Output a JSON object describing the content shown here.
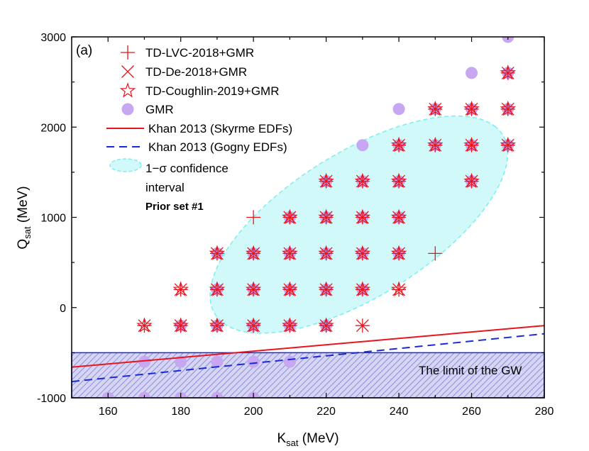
{
  "chart_data": {
    "type": "scatter",
    "panel_label": "(a)",
    "xlabel": {
      "main": "K",
      "sub": "sat",
      "unit": " (MeV)"
    },
    "ylabel": {
      "main": "Q",
      "sub": "sat",
      "unit": " (MeV)"
    },
    "xlim": [
      150,
      280
    ],
    "ylim": [
      -1000,
      3000
    ],
    "xticks": [
      160,
      180,
      200,
      220,
      240,
      260,
      280
    ],
    "yticks": [
      -1000,
      0,
      1000,
      2000,
      3000
    ],
    "ytick_labels": [
      "-1000",
      "0",
      "1000",
      "2000",
      "3000"
    ],
    "colors": {
      "red": "#e8141e",
      "violet": "#c7a6f2",
      "blue": "#1a2ad6",
      "cyan": "#7feff0",
      "band": "#8f8fe0"
    },
    "legend": {
      "series": [
        "TD-LVC-2018+GMR",
        "TD-De-2018+GMR",
        "TD-Coughlin-2019+GMR",
        "GMR"
      ],
      "lines": [
        "Khan 2013 (Skyrme EDFs)",
        "Khan 2013 (Gogny EDFs)"
      ],
      "ellipse_line1": "1−σ confidence",
      "ellipse_line2": "interval",
      "prior": "Prior set #1"
    },
    "band_label": "The limit of the GW",
    "band_range": [
      -1000,
      -500
    ],
    "series": [
      {
        "name": "TD-LVC-2018+GMR",
        "marker": "plus",
        "points": [
          [
            170,
            -200
          ],
          [
            180,
            -200
          ],
          [
            190,
            -200
          ],
          [
            200,
            -200
          ],
          [
            210,
            -200
          ],
          [
            220,
            -200
          ],
          [
            230,
            -200
          ],
          [
            180,
            200
          ],
          [
            190,
            200
          ],
          [
            200,
            200
          ],
          [
            210,
            200
          ],
          [
            220,
            200
          ],
          [
            230,
            200
          ],
          [
            240,
            200
          ],
          [
            190,
            600
          ],
          [
            200,
            600
          ],
          [
            210,
            600
          ],
          [
            220,
            600
          ],
          [
            230,
            600
          ],
          [
            240,
            600
          ],
          [
            250,
            600
          ],
          [
            200,
            1000
          ],
          [
            210,
            1000
          ],
          [
            220,
            1000
          ],
          [
            230,
            1000
          ],
          [
            240,
            1000
          ],
          [
            220,
            1400
          ],
          [
            230,
            1400
          ],
          [
            240,
            1400
          ],
          [
            260,
            1400
          ],
          [
            240,
            1800
          ],
          [
            250,
            1800
          ],
          [
            260,
            1800
          ],
          [
            270,
            1800
          ],
          [
            250,
            2200
          ],
          [
            260,
            2200
          ],
          [
            270,
            2200
          ],
          [
            270,
            2600
          ]
        ]
      },
      {
        "name": "TD-De-2018+GMR",
        "marker": "cross",
        "points": [
          [
            170,
            -200
          ],
          [
            180,
            -200
          ],
          [
            190,
            -200
          ],
          [
            200,
            -200
          ],
          [
            210,
            -200
          ],
          [
            220,
            -200
          ],
          [
            230,
            -200
          ],
          [
            180,
            200
          ],
          [
            190,
            200
          ],
          [
            200,
            200
          ],
          [
            210,
            200
          ],
          [
            220,
            200
          ],
          [
            230,
            200
          ],
          [
            240,
            200
          ],
          [
            190,
            600
          ],
          [
            200,
            600
          ],
          [
            210,
            600
          ],
          [
            220,
            600
          ],
          [
            230,
            600
          ],
          [
            240,
            600
          ],
          [
            210,
            1000
          ],
          [
            220,
            1000
          ],
          [
            230,
            1000
          ],
          [
            240,
            1000
          ],
          [
            220,
            1400
          ],
          [
            230,
            1400
          ],
          [
            240,
            1400
          ],
          [
            260,
            1400
          ],
          [
            240,
            1800
          ],
          [
            250,
            1800
          ],
          [
            260,
            1800
          ],
          [
            270,
            1800
          ],
          [
            250,
            2200
          ],
          [
            260,
            2200
          ],
          [
            270,
            2200
          ],
          [
            270,
            2600
          ]
        ]
      },
      {
        "name": "TD-Coughlin-2019+GMR",
        "marker": "star",
        "points": [
          [
            170,
            -200
          ],
          [
            180,
            -200
          ],
          [
            190,
            -200
          ],
          [
            200,
            -200
          ],
          [
            210,
            -200
          ],
          [
            220,
            -200
          ],
          [
            180,
            200
          ],
          [
            190,
            200
          ],
          [
            200,
            200
          ],
          [
            210,
            200
          ],
          [
            220,
            200
          ],
          [
            230,
            200
          ],
          [
            240,
            200
          ],
          [
            190,
            600
          ],
          [
            200,
            600
          ],
          [
            210,
            600
          ],
          [
            220,
            600
          ],
          [
            230,
            600
          ],
          [
            240,
            600
          ],
          [
            210,
            1000
          ],
          [
            220,
            1000
          ],
          [
            230,
            1000
          ],
          [
            240,
            1000
          ],
          [
            220,
            1400
          ],
          [
            230,
            1400
          ],
          [
            240,
            1400
          ],
          [
            260,
            1400
          ],
          [
            240,
            1800
          ],
          [
            250,
            1800
          ],
          [
            260,
            1800
          ],
          [
            270,
            1800
          ],
          [
            250,
            2200
          ],
          [
            260,
            2200
          ],
          [
            270,
            2200
          ],
          [
            270,
            2600
          ]
        ]
      },
      {
        "name": "GMR",
        "marker": "circle",
        "points": [
          [
            160,
            -1000
          ],
          [
            170,
            -1000
          ],
          [
            180,
            -1000
          ],
          [
            190,
            -1000
          ],
          [
            200,
            -1000
          ],
          [
            170,
            -600
          ],
          [
            180,
            -600
          ],
          [
            190,
            -600
          ],
          [
            200,
            -600
          ],
          [
            210,
            -600
          ],
          [
            180,
            -200
          ],
          [
            190,
            -200
          ],
          [
            200,
            -200
          ],
          [
            210,
            -200
          ],
          [
            220,
            -200
          ],
          [
            190,
            200
          ],
          [
            200,
            200
          ],
          [
            210,
            200
          ],
          [
            220,
            200
          ],
          [
            230,
            200
          ],
          [
            190,
            600
          ],
          [
            200,
            600
          ],
          [
            210,
            600
          ],
          [
            220,
            600
          ],
          [
            230,
            600
          ],
          [
            240,
            600
          ],
          [
            210,
            1000
          ],
          [
            220,
            1000
          ],
          [
            230,
            1000
          ],
          [
            240,
            1000
          ],
          [
            220,
            1400
          ],
          [
            230,
            1400
          ],
          [
            240,
            1400
          ],
          [
            260,
            1400
          ],
          [
            230,
            1800
          ],
          [
            240,
            1800
          ],
          [
            250,
            1800
          ],
          [
            260,
            1800
          ],
          [
            270,
            1800
          ],
          [
            240,
            2200
          ],
          [
            250,
            2200
          ],
          [
            260,
            2200
          ],
          [
            270,
            2200
          ],
          [
            260,
            2600
          ],
          [
            270,
            2600
          ],
          [
            270,
            3000
          ]
        ]
      }
    ],
    "lines": [
      {
        "name": "Khan 2013 (Skyrme EDFs)",
        "style": "solid",
        "points": [
          [
            150,
            -660
          ],
          [
            280,
            -200
          ]
        ]
      },
      {
        "name": "Khan 2013 (Gogny EDFs)",
        "style": "dashed",
        "points": [
          [
            150,
            -820
          ],
          [
            280,
            -290
          ]
        ]
      }
    ],
    "ellipse": {
      "name": "1−σ confidence interval",
      "center": [
        229,
        920
      ],
      "semi_major_x": 51.5,
      "semi_minor_x": 23.5,
      "angle_deg": 43
    }
  }
}
